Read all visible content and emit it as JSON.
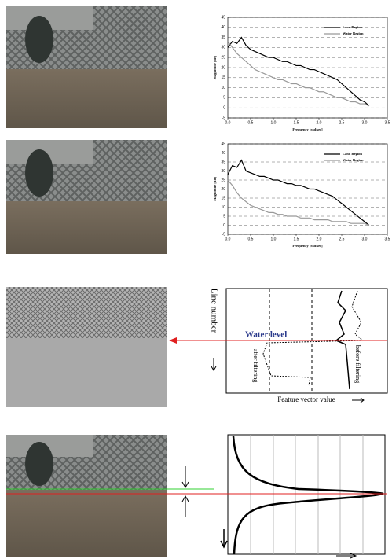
{
  "chart_data": [
    {
      "type": "line",
      "xlabel": "Frequency [rad/sec]",
      "ylabel": "Magnitude [dB]",
      "x": [
        0,
        0.1,
        0.2,
        0.3,
        0.4,
        0.5,
        0.6,
        0.7,
        0.8,
        0.9,
        1.0,
        1.1,
        1.2,
        1.3,
        1.4,
        1.5,
        1.6,
        1.7,
        1.8,
        1.9,
        2.0,
        2.1,
        2.2,
        2.3,
        2.4,
        2.5,
        2.6,
        2.7,
        2.8,
        2.9,
        3.0,
        3.1
      ],
      "series": [
        {
          "name": "Land Region",
          "color": "#000000",
          "values": [
            30,
            33,
            32,
            35,
            31,
            29,
            28,
            27,
            26,
            25,
            25,
            24,
            23,
            23,
            22,
            21,
            21,
            20,
            19,
            19,
            18,
            17,
            16,
            15,
            14,
            12,
            10,
            8,
            6,
            4,
            3,
            1
          ]
        },
        {
          "name": "Water Region",
          "color": "#999999",
          "values": [
            33,
            30,
            27,
            25,
            23,
            21,
            19,
            18,
            17,
            16,
            15,
            14,
            14,
            13,
            12,
            12,
            11,
            10,
            10,
            9,
            8,
            8,
            7,
            6,
            5,
            5,
            4,
            3,
            3,
            2,
            2,
            1
          ]
        }
      ],
      "xlim": [
        0,
        3.5
      ],
      "ylim": [
        -5,
        45
      ],
      "xticks": [
        {
          "value": 0,
          "label": "0.0"
        },
        {
          "value": 0.5,
          "label": "0.5"
        },
        {
          "value": 1,
          "label": "1.0"
        },
        {
          "value": 1.5,
          "label": "1.5"
        },
        {
          "value": 2,
          "label": "2.0"
        },
        {
          "value": 2.5,
          "label": "2.5"
        },
        {
          "value": 3,
          "label": "3.0"
        },
        {
          "value": 3.5,
          "label": "3.5"
        }
      ],
      "yticks": [
        -5,
        0,
        5,
        10,
        15,
        20,
        25,
        30,
        35,
        40,
        45
      ],
      "grid": true
    },
    {
      "type": "line",
      "xlabel": "Frequency [rad/sec]",
      "ylabel": "Magnitude [dB]",
      "x": [
        0,
        0.1,
        0.2,
        0.3,
        0.4,
        0.5,
        0.6,
        0.7,
        0.8,
        0.9,
        1.0,
        1.1,
        1.2,
        1.3,
        1.4,
        1.5,
        1.6,
        1.7,
        1.8,
        1.9,
        2.0,
        2.1,
        2.2,
        2.3,
        2.4,
        2.5,
        2.6,
        2.7,
        2.8,
        2.9,
        3.0,
        3.1
      ],
      "series": [
        {
          "name": "Land Region",
          "color": "#000000",
          "values": [
            28,
            33,
            32,
            36,
            30,
            29,
            28,
            27,
            27,
            26,
            25,
            25,
            24,
            23,
            23,
            22,
            22,
            21,
            20,
            20,
            19,
            18,
            17,
            16,
            14,
            12,
            10,
            8,
            6,
            4,
            2,
            0
          ]
        },
        {
          "name": "Water Region",
          "color": "#999999",
          "values": [
            25,
            22,
            18,
            15,
            13,
            11,
            10,
            9,
            8,
            7,
            7,
            6,
            6,
            5,
            5,
            5,
            4,
            4,
            4,
            3,
            3,
            3,
            3,
            2,
            2,
            2,
            2,
            1,
            1,
            1,
            1,
            0
          ]
        }
      ],
      "xlim": [
        0,
        3.5
      ],
      "ylim": [
        -5,
        45
      ],
      "xticks": [
        {
          "value": 0,
          "label": "0.0"
        },
        {
          "value": 0.5,
          "label": "0.5"
        },
        {
          "value": 1,
          "label": "1.0"
        },
        {
          "value": 1.5,
          "label": "1.5"
        },
        {
          "value": 2,
          "label": "2.0"
        },
        {
          "value": 2.5,
          "label": "2.5"
        },
        {
          "value": 3,
          "label": "3.0"
        },
        {
          "value": 3.5,
          "label": "3.5"
        }
      ],
      "yticks": [
        -5,
        0,
        5,
        10,
        15,
        20,
        25,
        30,
        35,
        40,
        45
      ],
      "grid": true
    }
  ],
  "figure": {
    "water_level": "Water level",
    "line_number": "Line number",
    "after_filtering": "after filtering",
    "before_filtering": "before filtering",
    "feature_vector_value": "Feature vector value"
  }
}
